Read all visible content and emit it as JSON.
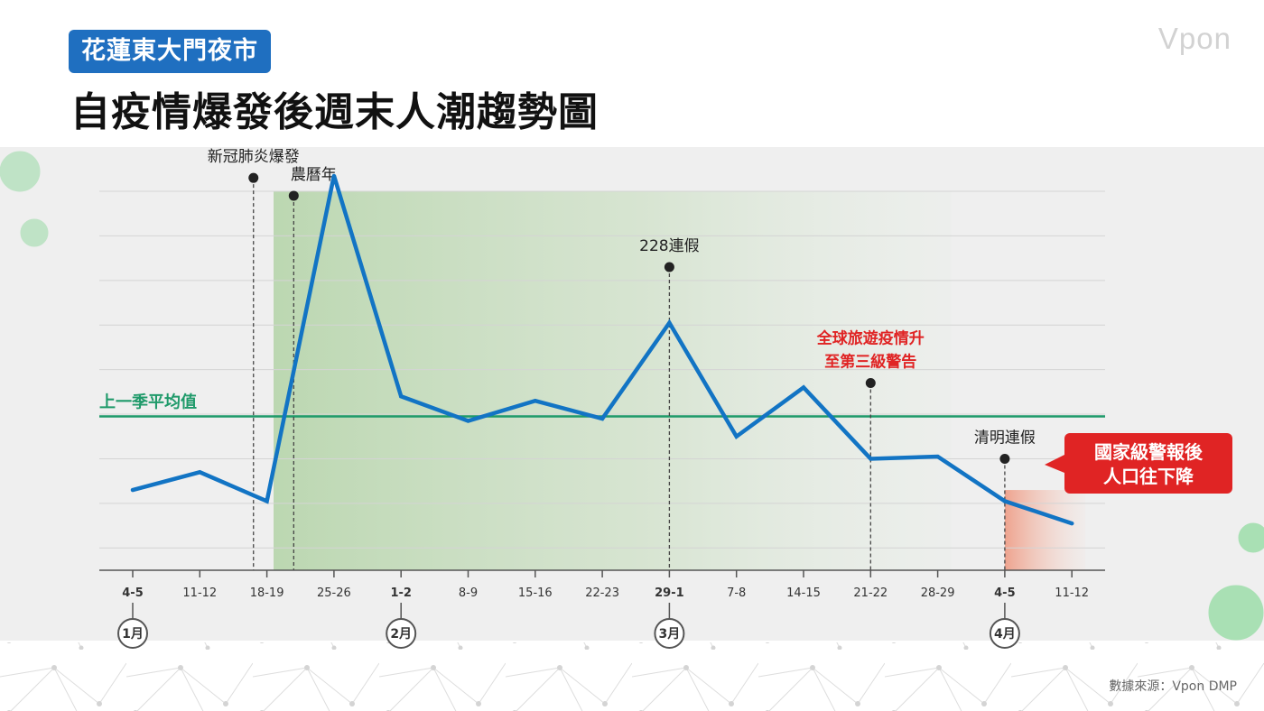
{
  "header": {
    "badge": "花蓮東大門夜市",
    "title": "自疫情爆發後週末人潮趨勢圖",
    "logo": "Vpon",
    "source": "數據來源：Vpon DMP"
  },
  "colors": {
    "line": "#1274c4",
    "average": "#1f9a6a",
    "alert": "#e02424",
    "badge": "#1f6fc0",
    "covid_period": "#c7dcc0",
    "decline_period": "#efb09c"
  },
  "chart_data": {
    "type": "line",
    "title": "自疫情爆發後週末人潮趨勢圖",
    "x": [
      "4-5",
      "11-12",
      "18-19",
      "25-26",
      "1-2",
      "8-9",
      "15-16",
      "22-23",
      "29-1",
      "7-8",
      "14-15",
      "21-22",
      "28-29",
      "4-5",
      "11-12"
    ],
    "month_start_indices": [
      0,
      4,
      8,
      13
    ],
    "months": [
      {
        "label": "1月",
        "index": 0
      },
      {
        "label": "2月",
        "index": 4
      },
      {
        "label": "3月",
        "index": 8
      },
      {
        "label": "4月",
        "index": 13
      }
    ],
    "series": [
      {
        "values": [
          1.3,
          1.7,
          1.05,
          8.35,
          3.4,
          2.85,
          3.3,
          2.9,
          5.05,
          2.5,
          3.6,
          2.0,
          2.05,
          1.05,
          0.55
        ]
      }
    ],
    "ylim": [
      -0.5,
      8.0
    ],
    "gridlines": [
      0,
      1,
      2,
      3,
      4,
      5,
      6,
      7,
      8
    ],
    "y_tick_labels": false,
    "average": {
      "label": "上一季平均值",
      "value": 2.95
    },
    "events": [
      {
        "label": "新冠肺炎爆發",
        "x_index": 1.8,
        "top_value": 8.3,
        "alert": false
      },
      {
        "label": "農曆年",
        "x_index": 2.4,
        "top_value": 7.9,
        "alert": false
      },
      {
        "label": "228連假",
        "x_index": 8,
        "top_value": 6.3,
        "alert": false
      },
      {
        "label": "全球旅遊疫情升\n至第三級警告",
        "x_index": 11,
        "top_value": 3.7,
        "alert": true
      },
      {
        "label": "清明連假",
        "x_index": 13,
        "top_value": 2.0,
        "alert": false
      }
    ],
    "shaded_regions": [
      {
        "name": "covid-period",
        "from_index": 2.1,
        "to_index": 12.2
      },
      {
        "name": "decline-period",
        "from_index": 13,
        "to_index": 14.2
      }
    ],
    "callout": "國家級警報後\n人口往下降",
    "grid": true,
    "legend": "none"
  }
}
